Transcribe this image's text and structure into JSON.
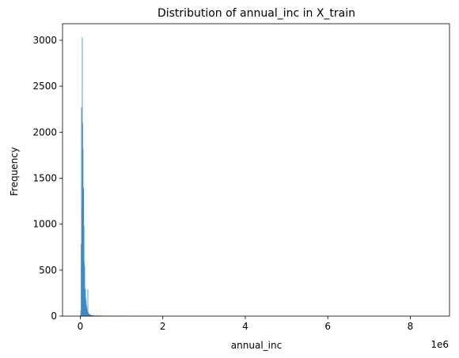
{
  "chart_data": {
    "type": "bar",
    "title": "Distribution of annual_inc in X_train",
    "xlabel": "annual_inc",
    "ylabel": "Frequency",
    "x_offset_label": "1e6",
    "xlim": [
      -0.43,
      8.95
    ],
    "ylim": [
      0,
      3180
    ],
    "x_ticks": [
      {
        "value": 0,
        "label": "0"
      },
      {
        "value": 2,
        "label": "2"
      },
      {
        "value": 4,
        "label": "4"
      },
      {
        "value": 6,
        "label": "6"
      },
      {
        "value": 8,
        "label": "8"
      }
    ],
    "y_ticks": [
      {
        "value": 0,
        "label": "0"
      },
      {
        "value": 500,
        "label": "500"
      },
      {
        "value": 1000,
        "label": "1000"
      },
      {
        "value": 1500,
        "label": "1500"
      },
      {
        "value": 2000,
        "label": "2000"
      },
      {
        "value": 2500,
        "label": "2500"
      },
      {
        "value": 3000,
        "label": "3000"
      }
    ],
    "bin_width": 0.0085,
    "x": [
      0.0,
      0.0085,
      0.017,
      0.0255,
      0.034,
      0.0425,
      0.051,
      0.0595,
      0.068,
      0.0765,
      0.085,
      0.0935,
      0.102,
      0.1105,
      0.119,
      0.1275,
      0.136,
      0.1445,
      0.153,
      0.1615,
      0.17,
      0.1785,
      0.187,
      0.1955,
      0.204,
      0.2125,
      0.221,
      0.2295,
      0.238,
      0.2465,
      0.255,
      0.2635,
      0.272,
      0.2805,
      0.289,
      0.2975,
      0.306,
      0.3145,
      0.323,
      0.3315,
      0.34,
      0.3485,
      0.357,
      0.3655,
      0.374,
      0.3825,
      0.391,
      0.3995,
      0.4505,
      0.5015,
      0.5525,
      0.6035,
      0.6545,
      0.7055,
      0.7565,
      0.8075,
      0.8585,
      0.9095,
      0.9605,
      1.0115,
      1.1135,
      1.2155,
      1.3175,
      1.4195,
      1.5215
    ],
    "values": [
      10,
      60,
      780,
      2270,
      1180,
      3030,
      2100,
      1820,
      1400,
      1380,
      980,
      580,
      540,
      300,
      290,
      200,
      160,
      120,
      90,
      70,
      55,
      45,
      40,
      30,
      25,
      20,
      18,
      16,
      14,
      12,
      12,
      10,
      9,
      8,
      8,
      7,
      6,
      6,
      5,
      5,
      5,
      4,
      4,
      3,
      3,
      3,
      3,
      10,
      8,
      6,
      5,
      4,
      4,
      3,
      3,
      2,
      2,
      2,
      2,
      4,
      3,
      2,
      2,
      3,
      2
    ],
    "extra_bars": [
      {
        "x": 0.1785,
        "value": 290
      }
    ],
    "bar_color": "#1f77b4",
    "bar_edge_color": "#4c8ec6"
  }
}
